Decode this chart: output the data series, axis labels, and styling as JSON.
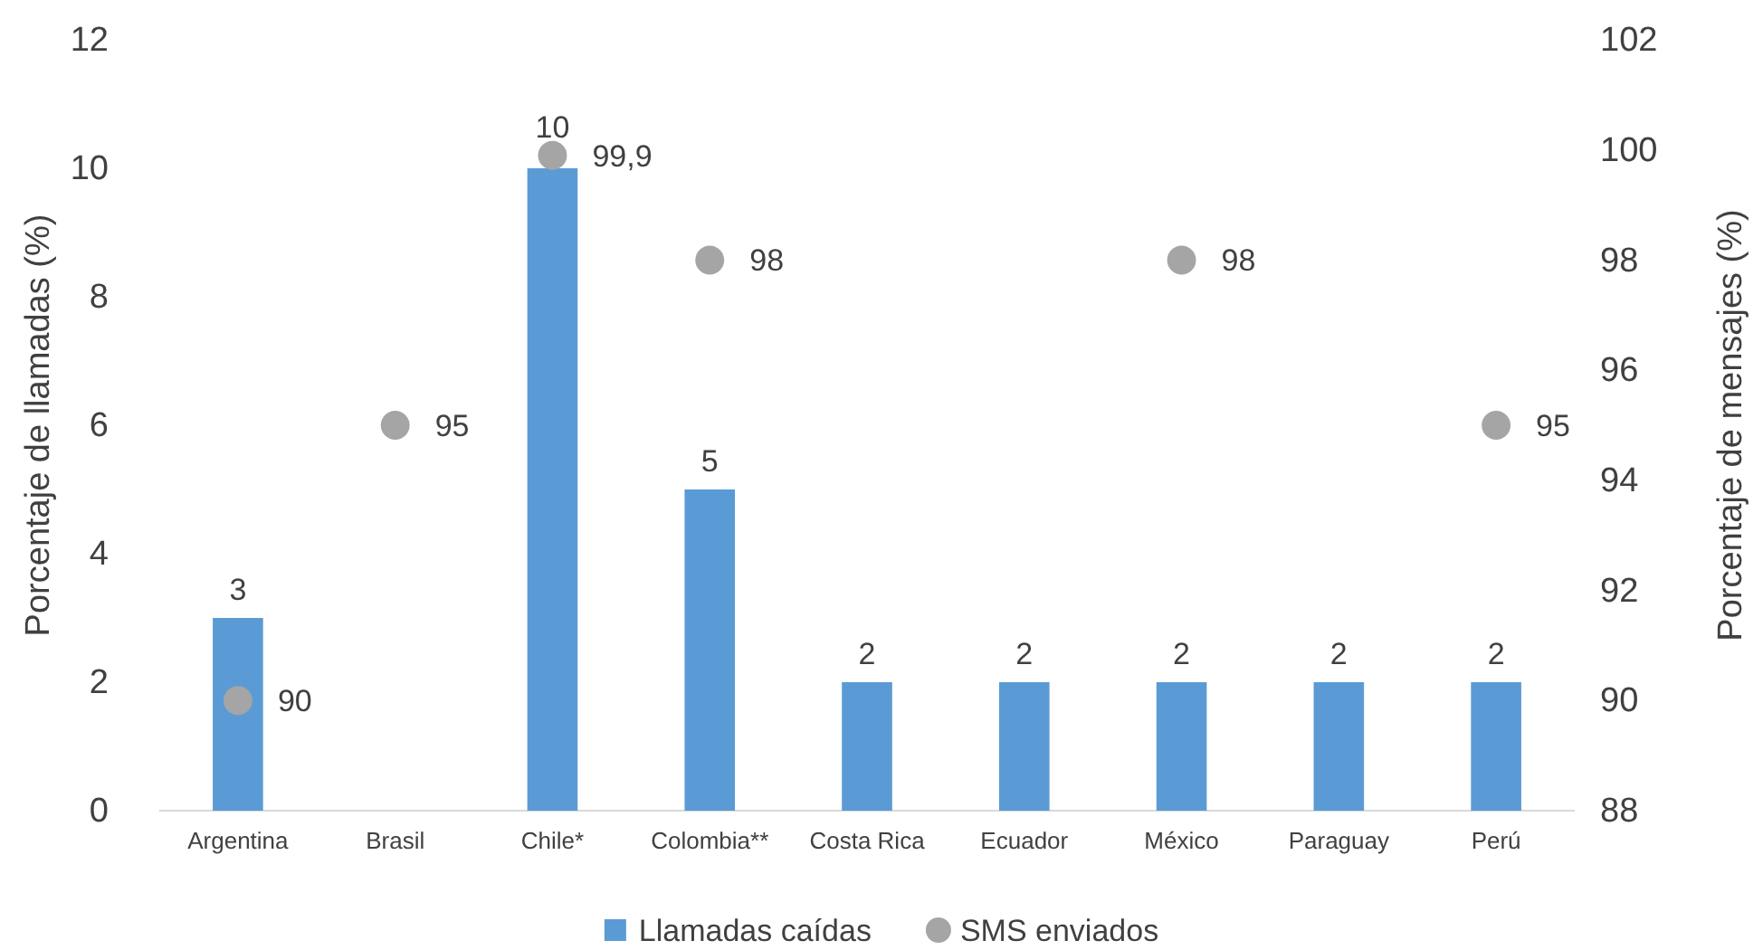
{
  "chart_data": {
    "type": "bar",
    "categories": [
      "Argentina",
      "Brasil",
      "Chile*",
      "Colombia**",
      "Costa Rica",
      "Ecuador",
      "México",
      "Paraguay",
      "Perú"
    ],
    "ylabel": "Porcentaje de llamadas (%)",
    "y2label": "Porcentaje de mensajes (%)",
    "ylim": [
      0,
      12
    ],
    "yticks": [
      0,
      2,
      4,
      6,
      8,
      10,
      12
    ],
    "y2lim": [
      88,
      102
    ],
    "y2ticks": [
      88,
      90,
      92,
      94,
      96,
      98,
      100,
      102
    ],
    "grid": false,
    "legend": "bottom",
    "marker": "circle",
    "series": [
      {
        "name": "Llamadas caídas",
        "type": "bar",
        "color": "#5b9bd5",
        "values": [
          3,
          null,
          10,
          5,
          2,
          2,
          2,
          2,
          2
        ],
        "value_labels": [
          "3",
          null,
          "10",
          "5",
          "2",
          "2",
          "2",
          "2",
          "2"
        ]
      },
      {
        "name": "SMS enviados",
        "type": "scatter",
        "axis": "y2",
        "color": "#a5a5a5",
        "values": [
          90,
          95,
          99.9,
          98,
          null,
          null,
          98,
          null,
          95
        ],
        "value_labels": [
          "90",
          "95",
          "99,9",
          "98",
          null,
          null,
          "98",
          null,
          "95"
        ]
      }
    ]
  }
}
